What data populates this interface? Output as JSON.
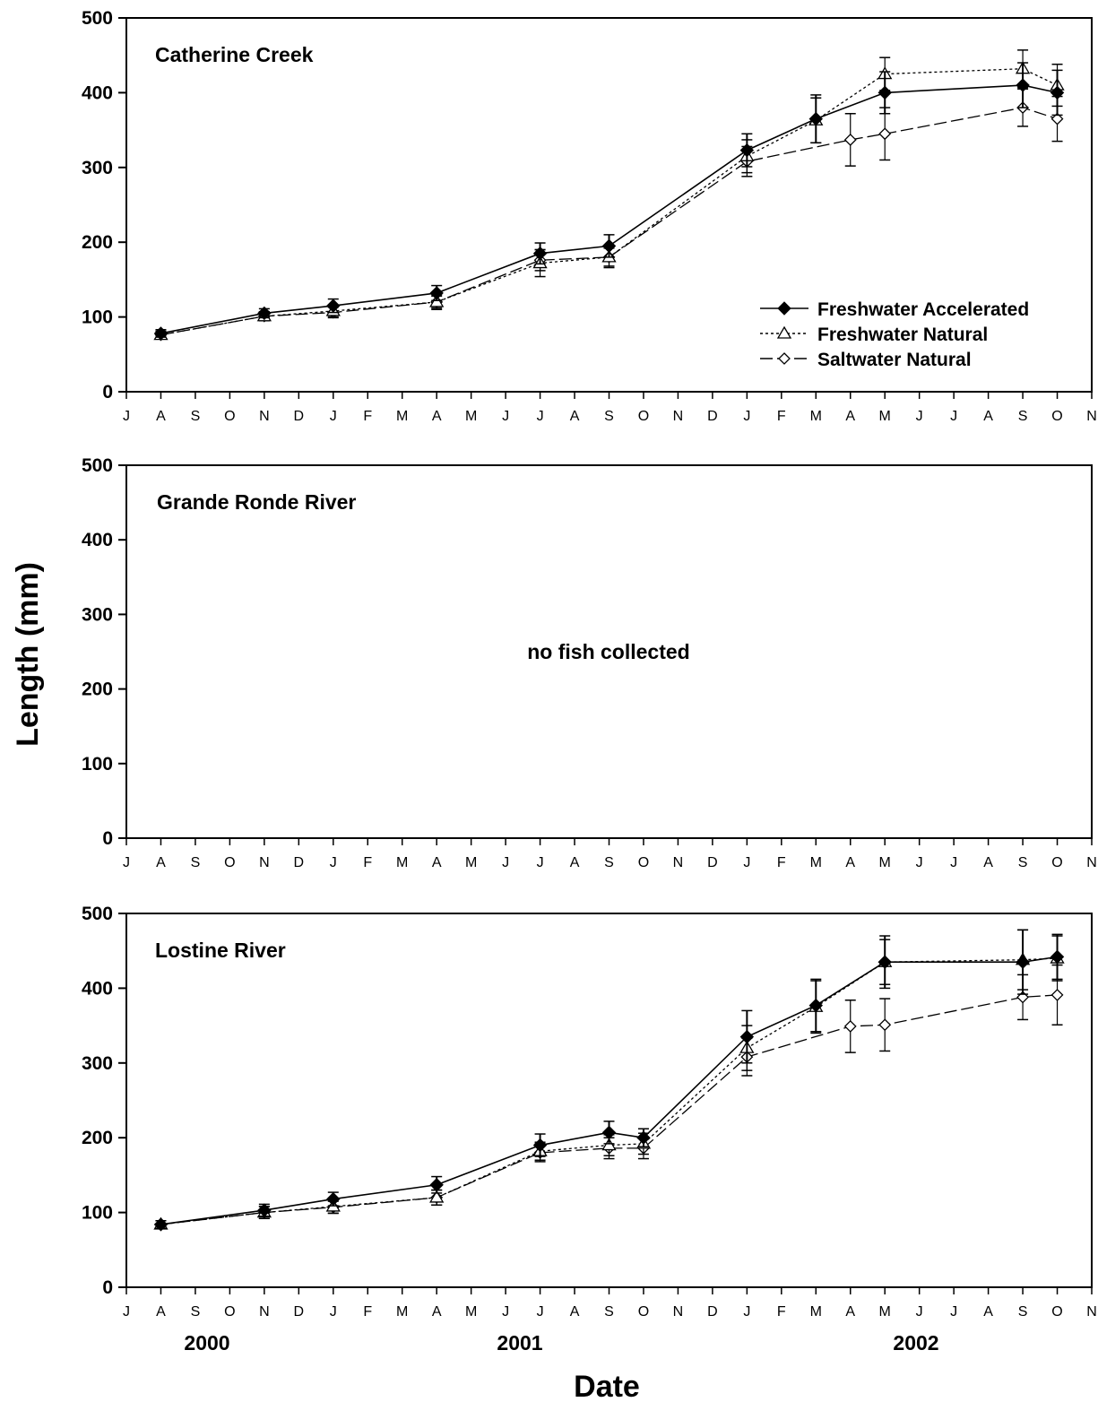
{
  "chart_data": {
    "type": "line",
    "ylabel": "Length (mm)",
    "xlabel": "Date",
    "ylim": [
      0,
      500
    ],
    "yticks": [
      "0",
      "100",
      "200",
      "300",
      "400",
      "500"
    ],
    "month_labels": [
      "J",
      "A",
      "S",
      "O",
      "N",
      "D",
      "J",
      "F",
      "M",
      "A",
      "M",
      "J",
      "J",
      "A",
      "S",
      "O",
      "N",
      "D",
      "J",
      "F",
      "M",
      "A",
      "M",
      "J",
      "J",
      "A",
      "S",
      "O",
      "N"
    ],
    "year_labels": [
      "2000",
      "2001",
      "2002"
    ],
    "legend": {
      "placement": "bottom-right of top panel",
      "entries": [
        "Freshwater Accelerated",
        "Freshwater Natural",
        "Saltwater Natural"
      ]
    },
    "series_styles": [
      {
        "key": "fwa",
        "name": "Freshwater Accelerated",
        "dash": "solid",
        "marker": "filled-diamond",
        "color": "#000000"
      },
      {
        "key": "fwn",
        "name": "Freshwater Natural",
        "dash": "dotted",
        "marker": "open-triangle",
        "color": "#000000"
      },
      {
        "key": "swn",
        "name": "Saltwater Natural",
        "dash": "long-dash",
        "marker": "open-diamond",
        "color": "#000000"
      }
    ],
    "panels": [
      {
        "title": "Catherine Creek",
        "note": "",
        "series": [
          {
            "key": "fwa",
            "x": [
              "Aug 2000",
              "Nov 2000",
              "Jan 2001",
              "Apr 2001",
              "Jul 2001",
              "Sep 2001",
              "Jan 2002",
              "Mar 2002",
              "May 2002",
              "Sep 2002",
              "Oct 2002"
            ],
            "y": [
              78,
              105,
              115,
              132,
              185,
              195,
              323,
              365,
              400,
              410,
              400
            ],
            "err": [
              5,
              6,
              9,
              10,
              14,
              15,
              22,
              32,
              28,
              30,
              30
            ]
          },
          {
            "key": "fwn",
            "x": [
              "Aug 2000",
              "Nov 2000",
              "Jan 2001",
              "Apr 2001",
              "Jul 2001",
              "Sep 2001",
              "Jan 2002",
              "Mar 2002",
              "May 2002",
              "Sep 2002",
              "Oct 2002"
            ],
            "y": [
              76,
              101,
              108,
              120,
              172,
              180,
              315,
              363,
              425,
              432,
              410
            ],
            "err": [
              5,
              6,
              8,
              10,
              18,
              14,
              22,
              30,
              22,
              25,
              28
            ]
          },
          {
            "key": "swn",
            "x": [
              "Aug 2000",
              "Nov 2000",
              "Jan 2001",
              "Apr 2001",
              "Jul 2001",
              "Sep 2001",
              "Jan 2002",
              "Apr 2002",
              "May 2002",
              "Sep 2002",
              "Oct 2002"
            ],
            "y": [
              76,
              101,
              106,
              120,
              176,
              180,
              308,
              337,
              345,
              380,
              365
            ],
            "err": [
              4,
              6,
              7,
              8,
              14,
              12,
              20,
              35,
              35,
              25,
              30
            ]
          }
        ]
      },
      {
        "title": "Grande Ronde River",
        "note": "no fish collected",
        "series": []
      },
      {
        "title": "Lostine River",
        "note": "",
        "series": [
          {
            "key": "fwa",
            "x": [
              "Aug 2000",
              "Nov 2000",
              "Jan 2001",
              "Apr 2001",
              "Jul 2001",
              "Sep 2001",
              "Oct 2001",
              "Jan 2002",
              "Mar 2002",
              "May 2002",
              "Sep 2002",
              "Oct 2002"
            ],
            "y": [
              84,
              103,
              118,
              137,
              190,
              207,
              200,
              335,
              377,
              435,
              435,
              442
            ],
            "err": [
              5,
              8,
              9,
              11,
              15,
              15,
              12,
              35,
              35,
              35,
              43,
              30
            ]
          },
          {
            "key": "fwn",
            "x": [
              "Aug 2000",
              "Nov 2000",
              "Jan 2001",
              "Apr 2001",
              "Jul 2001",
              "Sep 2001",
              "Oct 2001",
              "Jan 2002",
              "Mar 2002",
              "May 2002",
              "Sep 2002",
              "Oct 2002"
            ],
            "y": [
              84,
              100,
              108,
              120,
              182,
              190,
              192,
              320,
              375,
              435,
              438,
              440
            ],
            "err": [
              5,
              8,
              9,
              10,
              12,
              14,
              14,
              30,
              35,
              30,
              40,
              30
            ]
          },
          {
            "key": "swn",
            "x": [
              "Aug 2000",
              "Nov 2000",
              "Jan 2001",
              "Apr 2001",
              "Jul 2001",
              "Sep 2001",
              "Oct 2001",
              "Jan 2002",
              "Apr 2002",
              "May 2002",
              "Sep 2002",
              "Oct 2002"
            ],
            "y": [
              84,
              100,
              107,
              120,
              180,
              186,
              186,
              308,
              349,
              351,
              388,
              391
            ],
            "err": [
              5,
              8,
              8,
              10,
              12,
              14,
              14,
              25,
              35,
              35,
              30,
              40
            ]
          }
        ]
      }
    ]
  }
}
